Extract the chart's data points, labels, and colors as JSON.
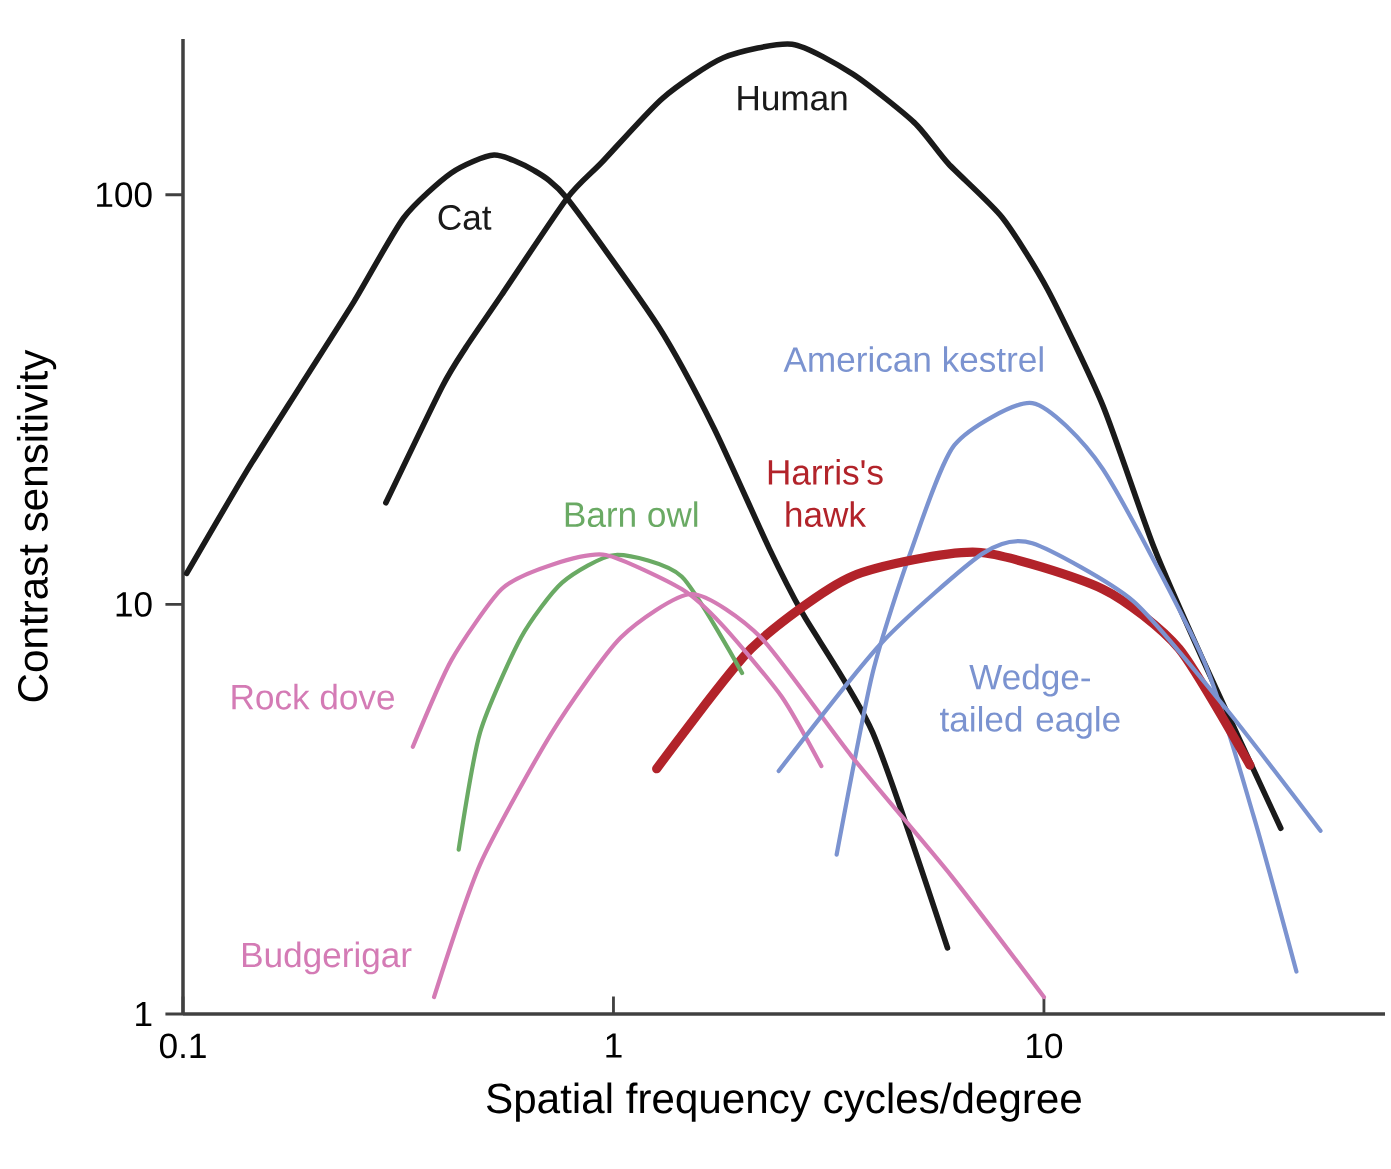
{
  "chart_data": {
    "type": "line",
    "xlabel": "Spatial frequency cycles/degree",
    "ylabel": "Contrast sensitivity",
    "log": "xy",
    "xlim": [
      0.1,
      62
    ],
    "ylim": [
      1,
      240
    ],
    "xticks": [
      0.1,
      1,
      10
    ],
    "yticks": [
      1,
      10,
      100
    ],
    "series": [
      {
        "name": "Cat",
        "color": "#1a1a1a",
        "x": [
          0.102,
          0.14,
          0.187,
          0.25,
          0.326,
          0.42,
          0.528,
          0.65,
          0.78,
          1.27,
          1.71,
          2.3,
          2.75,
          4.0,
          5.97
        ],
        "values": [
          11.9,
          21,
          34,
          55,
          88,
          113,
          125,
          115,
          98,
          47.8,
          27,
          13.7,
          9.5,
          4.87,
          1.45
        ]
      },
      {
        "name": "Human",
        "color": "#1a1a1a",
        "x": [
          0.296,
          0.4,
          0.454,
          0.55,
          0.78,
          0.94,
          1.3,
          1.8,
          2.6,
          3.6,
          5,
          6,
          8,
          10.2,
          13.7,
          18,
          23.5,
          35.5
        ],
        "values": [
          17.7,
          34,
          42.4,
          57,
          98,
          120,
          172,
          216,
          233,
          197,
          150,
          119,
          88,
          58.7,
          30.6,
          13.8,
          7.25,
          2.84
        ]
      },
      {
        "name": "American kestrel",
        "color": "#7b93d0",
        "x": [
          3.3,
          4.0,
          4.9,
          6.2,
          9.4,
          13.7,
          23.5,
          30.7,
          38.6
        ],
        "values": [
          2.45,
          6.8,
          13.4,
          24.5,
          31,
          21.4,
          7.3,
          3.04,
          1.27
        ]
      },
      {
        "name": "Harris's hawk",
        "color": "#b2232a",
        "x": [
          1.26,
          2.09,
          3.58,
          7.0,
          13.7,
          20.6,
          30.1
        ],
        "values": [
          3.97,
          7.8,
          11.7,
          13.4,
          10.9,
          7.8,
          4.05
        ]
      },
      {
        "name": "Barn owl",
        "color": "#6aaa64",
        "x": [
          0.437,
          0.49,
          0.61,
          0.76,
          1.01,
          1.44,
          1.99
        ],
        "values": [
          2.52,
          4.87,
          8.3,
          11.3,
          13.2,
          11.7,
          6.8
        ]
      },
      {
        "name": "Rock dove",
        "color": "#d47bb5",
        "x": [
          0.342,
          0.42,
          0.55,
          0.72,
          0.96,
          1.44,
          1.79,
          2.46,
          3.04
        ],
        "values": [
          4.49,
          7.3,
          10.9,
          12.5,
          13.2,
          10.9,
          8.9,
          5.95,
          4.03
        ]
      },
      {
        "name": "Budgerigar",
        "color": "#d47bb5",
        "x": [
          0.383,
          0.49,
          0.72,
          1.04,
          1.52,
          2.2,
          3.58,
          6.1,
          10
        ],
        "values": [
          1.1,
          2.32,
          4.87,
          8.3,
          10.6,
          8.3,
          4.25,
          2.17,
          1.1
        ]
      },
      {
        "name": "Wedge-tailed eagle",
        "color": "#7b93d0",
        "x": [
          2.42,
          4.2,
          7.2,
          9.4,
          16.1,
          26.5,
          43.9
        ],
        "values": [
          3.92,
          8.06,
          13.3,
          14.1,
          10.2,
          5.56,
          2.8
        ]
      }
    ]
  }
}
